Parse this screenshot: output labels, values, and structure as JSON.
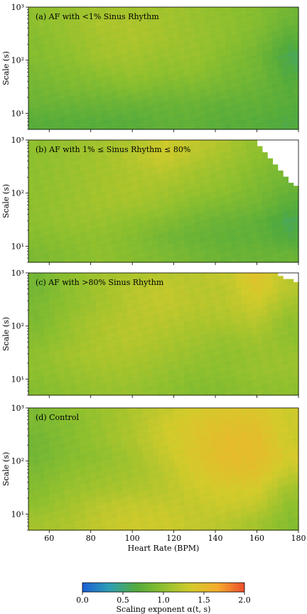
{
  "chart_data": {
    "type": "heatmap",
    "xlabel": "Heart Rate (BPM)",
    "ylabel": "Scale (s)",
    "xlim": [
      50,
      180
    ],
    "ylim": [
      5,
      1000
    ],
    "yscale": "log",
    "x_ticks": [
      60,
      80,
      100,
      120,
      140,
      160,
      180
    ],
    "x_tick_labels": [
      "60",
      "80",
      "100",
      "120",
      "140",
      "160",
      "180"
    ],
    "y_ticks": [
      10,
      100,
      1000
    ],
    "y_tick_labels": [
      "10¹",
      "10²",
      "10³"
    ],
    "colorbar": {
      "label": "Scaling exponent α(t, s)",
      "range": [
        0.0,
        2.0
      ],
      "ticks": [
        0.0,
        0.5,
        1.0,
        1.5,
        2.0
      ],
      "tick_labels": [
        "0.0",
        "0.5",
        "1.0",
        "1.5",
        "2.0"
      ],
      "colormap": [
        "#1a5fd6",
        "#2e9fb4",
        "#53ab3c",
        "#8fc02e",
        "#d3cb2c",
        "#f5ad2d",
        "#ee4d2b"
      ]
    },
    "panels": [
      {
        "title": "(a) AF with <1% Sinus Rhythm",
        "x": [
          55,
          70,
          85,
          100,
          115,
          130,
          145,
          160,
          175
        ],
        "y": [
          7,
          15,
          30,
          60,
          120,
          250,
          500,
          900
        ],
        "z": [
          [
            0.7,
            0.7,
            0.7,
            0.7,
            0.75,
            0.75,
            0.7,
            0.7,
            0.65
          ],
          [
            0.8,
            0.8,
            0.8,
            0.8,
            0.8,
            0.8,
            0.75,
            0.75,
            0.7
          ],
          [
            0.85,
            0.9,
            0.9,
            0.95,
            0.9,
            0.9,
            0.85,
            0.8,
            0.7
          ],
          [
            0.9,
            0.95,
            1.0,
            1.05,
            1.0,
            1.0,
            0.9,
            0.85,
            0.65
          ],
          [
            0.95,
            1.0,
            1.1,
            1.1,
            1.05,
            1.05,
            0.95,
            0.85,
            0.6
          ],
          [
            0.95,
            1.05,
            1.1,
            1.15,
            1.1,
            1.05,
            1.0,
            0.9,
            0.7
          ],
          [
            1.0,
            1.05,
            1.15,
            1.15,
            1.1,
            1.05,
            1.0,
            0.95,
            0.8
          ],
          [
            1.0,
            1.05,
            1.1,
            1.1,
            1.1,
            1.05,
            1.0,
            0.95,
            0.85
          ]
        ],
        "missing_region": []
      },
      {
        "title": "(b) AF with 1% ≤ Sinus Rhythm ≤ 80%",
        "x": [
          55,
          70,
          85,
          100,
          115,
          130,
          145,
          160,
          175
        ],
        "y": [
          7,
          15,
          30,
          60,
          120,
          250,
          500,
          900
        ],
        "z": [
          [
            0.9,
            0.95,
            1.0,
            0.95,
            0.9,
            0.85,
            0.8,
            0.8,
            0.8
          ],
          [
            0.95,
            1.0,
            1.0,
            0.95,
            0.85,
            0.8,
            0.75,
            0.75,
            0.65
          ],
          [
            1.0,
            1.05,
            1.05,
            1.0,
            0.95,
            0.85,
            0.8,
            0.75,
            0.6
          ],
          [
            1.0,
            1.05,
            1.1,
            1.1,
            1.05,
            0.95,
            0.9,
            0.85,
            0.7
          ],
          [
            1.0,
            1.05,
            1.1,
            1.15,
            1.1,
            1.05,
            1.0,
            0.9,
            0.8
          ],
          [
            1.0,
            1.05,
            1.1,
            1.15,
            1.2,
            1.1,
            1.05,
            0.95,
            0.85
          ],
          [
            1.0,
            1.05,
            1.1,
            1.2,
            1.3,
            1.2,
            1.1,
            1.0,
            0.9
          ],
          [
            1.0,
            1.05,
            1.1,
            1.15,
            1.3,
            1.25,
            1.15,
            1.0,
            0.9
          ]
        ],
        "missing_region": "upper-right corner (high scale, high heart rate)"
      },
      {
        "title": "(c) AF with >80% Sinus Rhythm",
        "x": [
          55,
          70,
          85,
          100,
          115,
          130,
          145,
          160,
          175
        ],
        "y": [
          7,
          15,
          30,
          60,
          120,
          250,
          500,
          900
        ],
        "z": [
          [
            0.95,
            1.0,
            1.05,
            1.05,
            1.0,
            0.95,
            0.95,
            1.0,
            1.0
          ],
          [
            1.0,
            1.05,
            1.1,
            1.1,
            1.05,
            1.0,
            1.0,
            1.05,
            1.05
          ],
          [
            1.0,
            1.1,
            1.15,
            1.15,
            1.1,
            1.05,
            1.0,
            1.05,
            1.05
          ],
          [
            0.95,
            1.05,
            1.15,
            1.2,
            1.15,
            1.1,
            1.05,
            1.1,
            1.0
          ],
          [
            0.9,
            1.05,
            1.15,
            1.2,
            1.2,
            1.15,
            1.15,
            1.2,
            1.0
          ],
          [
            0.9,
            1.0,
            1.1,
            1.2,
            1.25,
            1.2,
            1.2,
            1.3,
            1.1
          ],
          [
            0.85,
            1.0,
            1.1,
            1.2,
            1.25,
            1.2,
            1.2,
            1.4,
            1.2
          ],
          [
            0.85,
            1.0,
            1.1,
            1.15,
            1.2,
            1.2,
            1.25,
            1.45,
            1.2
          ]
        ],
        "missing_region": "top-right corner"
      },
      {
        "title": "(d) Control",
        "x": [
          55,
          70,
          85,
          100,
          115,
          130,
          145,
          160,
          175
        ],
        "y": [
          7,
          15,
          30,
          60,
          120,
          250,
          500,
          900
        ],
        "z": [
          [
            1.1,
            1.15,
            1.25,
            1.3,
            1.3,
            1.25,
            1.2,
            1.1,
            0.95
          ],
          [
            1.0,
            1.1,
            1.2,
            1.25,
            1.25,
            1.25,
            1.3,
            1.25,
            1.0
          ],
          [
            0.95,
            1.05,
            1.1,
            1.15,
            1.2,
            1.3,
            1.35,
            1.35,
            1.1
          ],
          [
            0.9,
            1.0,
            1.05,
            1.1,
            1.2,
            1.35,
            1.45,
            1.45,
            1.25
          ],
          [
            0.85,
            0.95,
            1.0,
            1.1,
            1.25,
            1.4,
            1.5,
            1.5,
            1.35
          ],
          [
            0.85,
            0.95,
            1.05,
            1.15,
            1.3,
            1.4,
            1.5,
            1.5,
            1.3
          ],
          [
            0.9,
            0.95,
            1.05,
            1.15,
            1.3,
            1.4,
            1.45,
            1.45,
            1.3
          ],
          [
            0.9,
            1.0,
            1.05,
            1.15,
            1.25,
            1.35,
            1.4,
            1.4,
            1.3
          ]
        ],
        "missing_region": []
      }
    ]
  }
}
